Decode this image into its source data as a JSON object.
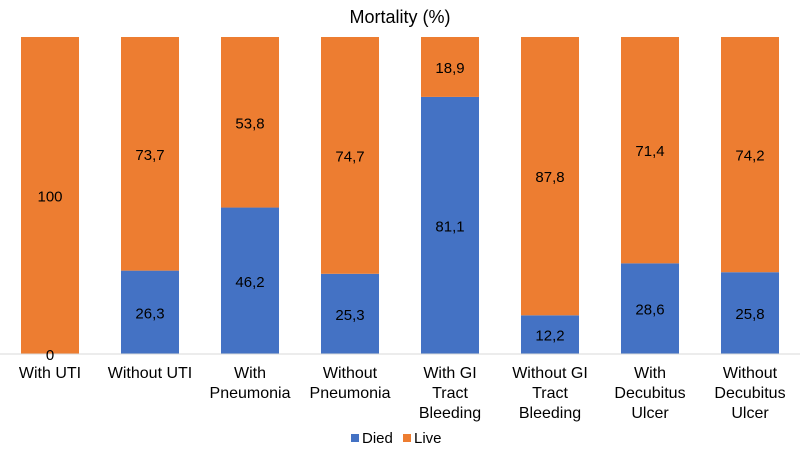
{
  "chart_data": {
    "type": "bar",
    "stacked": true,
    "title": "Mortality (%)",
    "xlabel": "",
    "ylabel": "",
    "ylim": [
      0,
      100
    ],
    "grid": false,
    "legend_position": "bottom",
    "categories": [
      [
        "With UTI"
      ],
      [
        "Without UTI"
      ],
      [
        "With",
        "Pneumonia"
      ],
      [
        "Without",
        "Pneumonia"
      ],
      [
        "With GI",
        "Tract",
        "Bleeding"
      ],
      [
        "Without GI",
        "Tract",
        "Bleeding"
      ],
      [
        "With",
        "Decubitus",
        "Ulcer"
      ],
      [
        "Without",
        "Decubitus",
        "Ulcer"
      ]
    ],
    "series": [
      {
        "name": "Died",
        "color": "#4472C4",
        "values": [
          0,
          26.3,
          46.2,
          25.3,
          81.1,
          12.2,
          28.6,
          25.8
        ],
        "labels": [
          "0",
          "26,3",
          "46,2",
          "25,3",
          "81,1",
          "12,2",
          "28,6",
          "25,8"
        ]
      },
      {
        "name": "Live",
        "color": "#ED7D31",
        "values": [
          100,
          73.7,
          53.8,
          74.7,
          18.9,
          87.8,
          71.4,
          74.2
        ],
        "labels": [
          "100",
          "73,7",
          "53,8",
          "74,7",
          "18,9",
          "87,8",
          "71,4",
          "74,2"
        ]
      }
    ]
  }
}
